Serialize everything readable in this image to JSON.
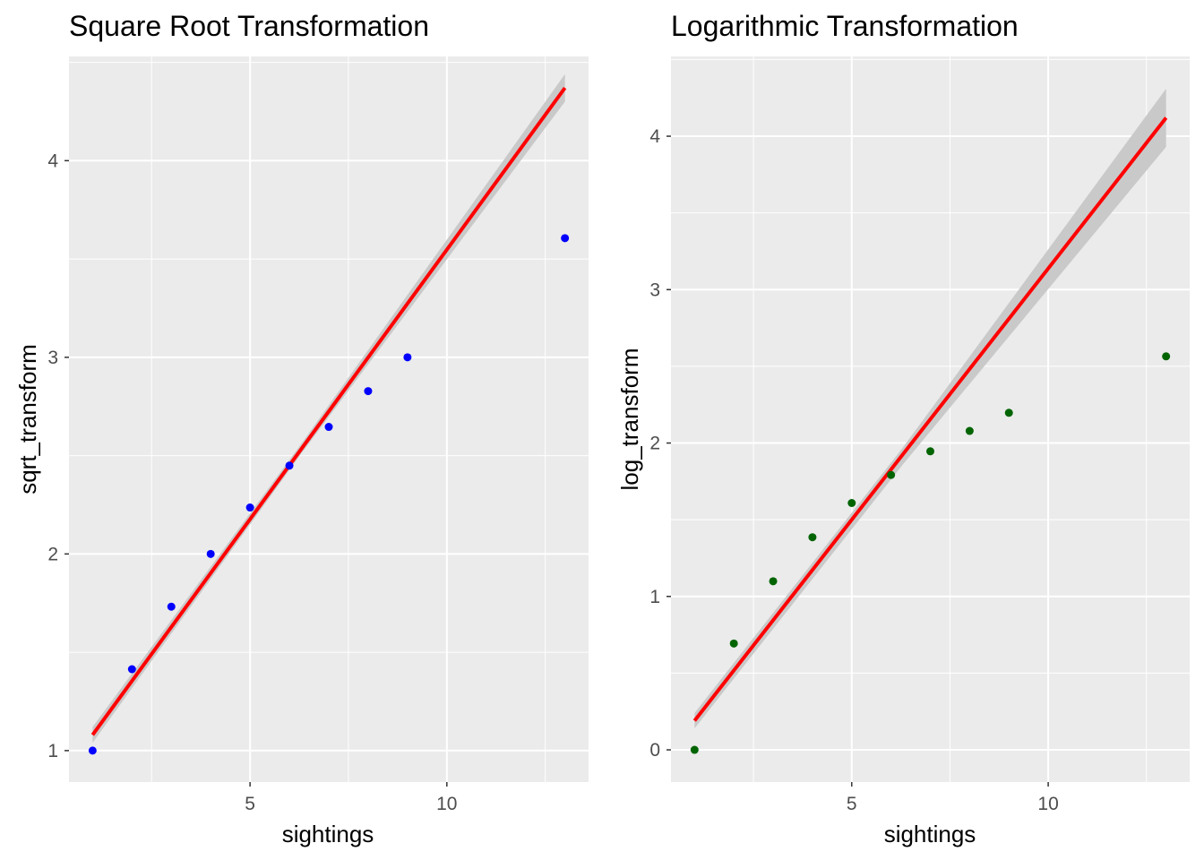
{
  "chart_data": [
    {
      "type": "scatter",
      "title": "Square Root Transformation",
      "xlabel": "sightings",
      "ylabel": "sqrt_transform",
      "xlim": [
        0.4,
        13.6
      ],
      "ylim": [
        0.84,
        4.53
      ],
      "x_ticks": [
        5,
        10
      ],
      "y_ticks": [
        1,
        2,
        3,
        4
      ],
      "grid": true,
      "point_color": "#0000ff",
      "points": [
        {
          "x": 1,
          "y": 1.0
        },
        {
          "x": 2,
          "y": 1.414
        },
        {
          "x": 3,
          "y": 1.732
        },
        {
          "x": 4,
          "y": 2.0
        },
        {
          "x": 5,
          "y": 2.236
        },
        {
          "x": 6,
          "y": 2.449
        },
        {
          "x": 7,
          "y": 2.646
        },
        {
          "x": 8,
          "y": 2.828
        },
        {
          "x": 9,
          "y": 3.0
        },
        {
          "x": 13,
          "y": 3.606
        }
      ],
      "fit_line": {
        "color": "#ff0000",
        "x": [
          1,
          13
        ],
        "y": [
          1.08,
          4.37
        ]
      },
      "confidence_band": {
        "color": "#c9c9c9",
        "x": [
          1,
          6.3,
          13
        ],
        "lower": [
          1.04,
          2.51,
          4.3
        ],
        "upper": [
          1.12,
          2.56,
          4.44
        ]
      }
    },
    {
      "type": "scatter",
      "title": "Logarithmic Transformation",
      "xlabel": "sightings",
      "ylabel": "log_transform",
      "xlim": [
        0.4,
        13.6
      ],
      "ylim": [
        -0.21,
        4.52
      ],
      "x_ticks": [
        5,
        10
      ],
      "y_ticks": [
        0,
        1,
        2,
        3,
        4
      ],
      "grid": true,
      "point_color": "#006400",
      "points": [
        {
          "x": 1,
          "y": 0.0
        },
        {
          "x": 2,
          "y": 0.693
        },
        {
          "x": 3,
          "y": 1.099
        },
        {
          "x": 4,
          "y": 1.386
        },
        {
          "x": 5,
          "y": 1.609
        },
        {
          "x": 6,
          "y": 1.792
        },
        {
          "x": 7,
          "y": 1.946
        },
        {
          "x": 8,
          "y": 2.079
        },
        {
          "x": 9,
          "y": 2.197
        },
        {
          "x": 13,
          "y": 2.565
        }
      ],
      "fit_line": {
        "color": "#ff0000",
        "x": [
          1,
          13
        ],
        "y": [
          0.19,
          4.12
        ]
      },
      "confidence_band": {
        "color": "#c9c9c9",
        "x": [
          1,
          6.3,
          13
        ],
        "lower": [
          0.14,
          1.86,
          3.93
        ],
        "upper": [
          0.24,
          1.97,
          4.31
        ]
      }
    }
  ]
}
